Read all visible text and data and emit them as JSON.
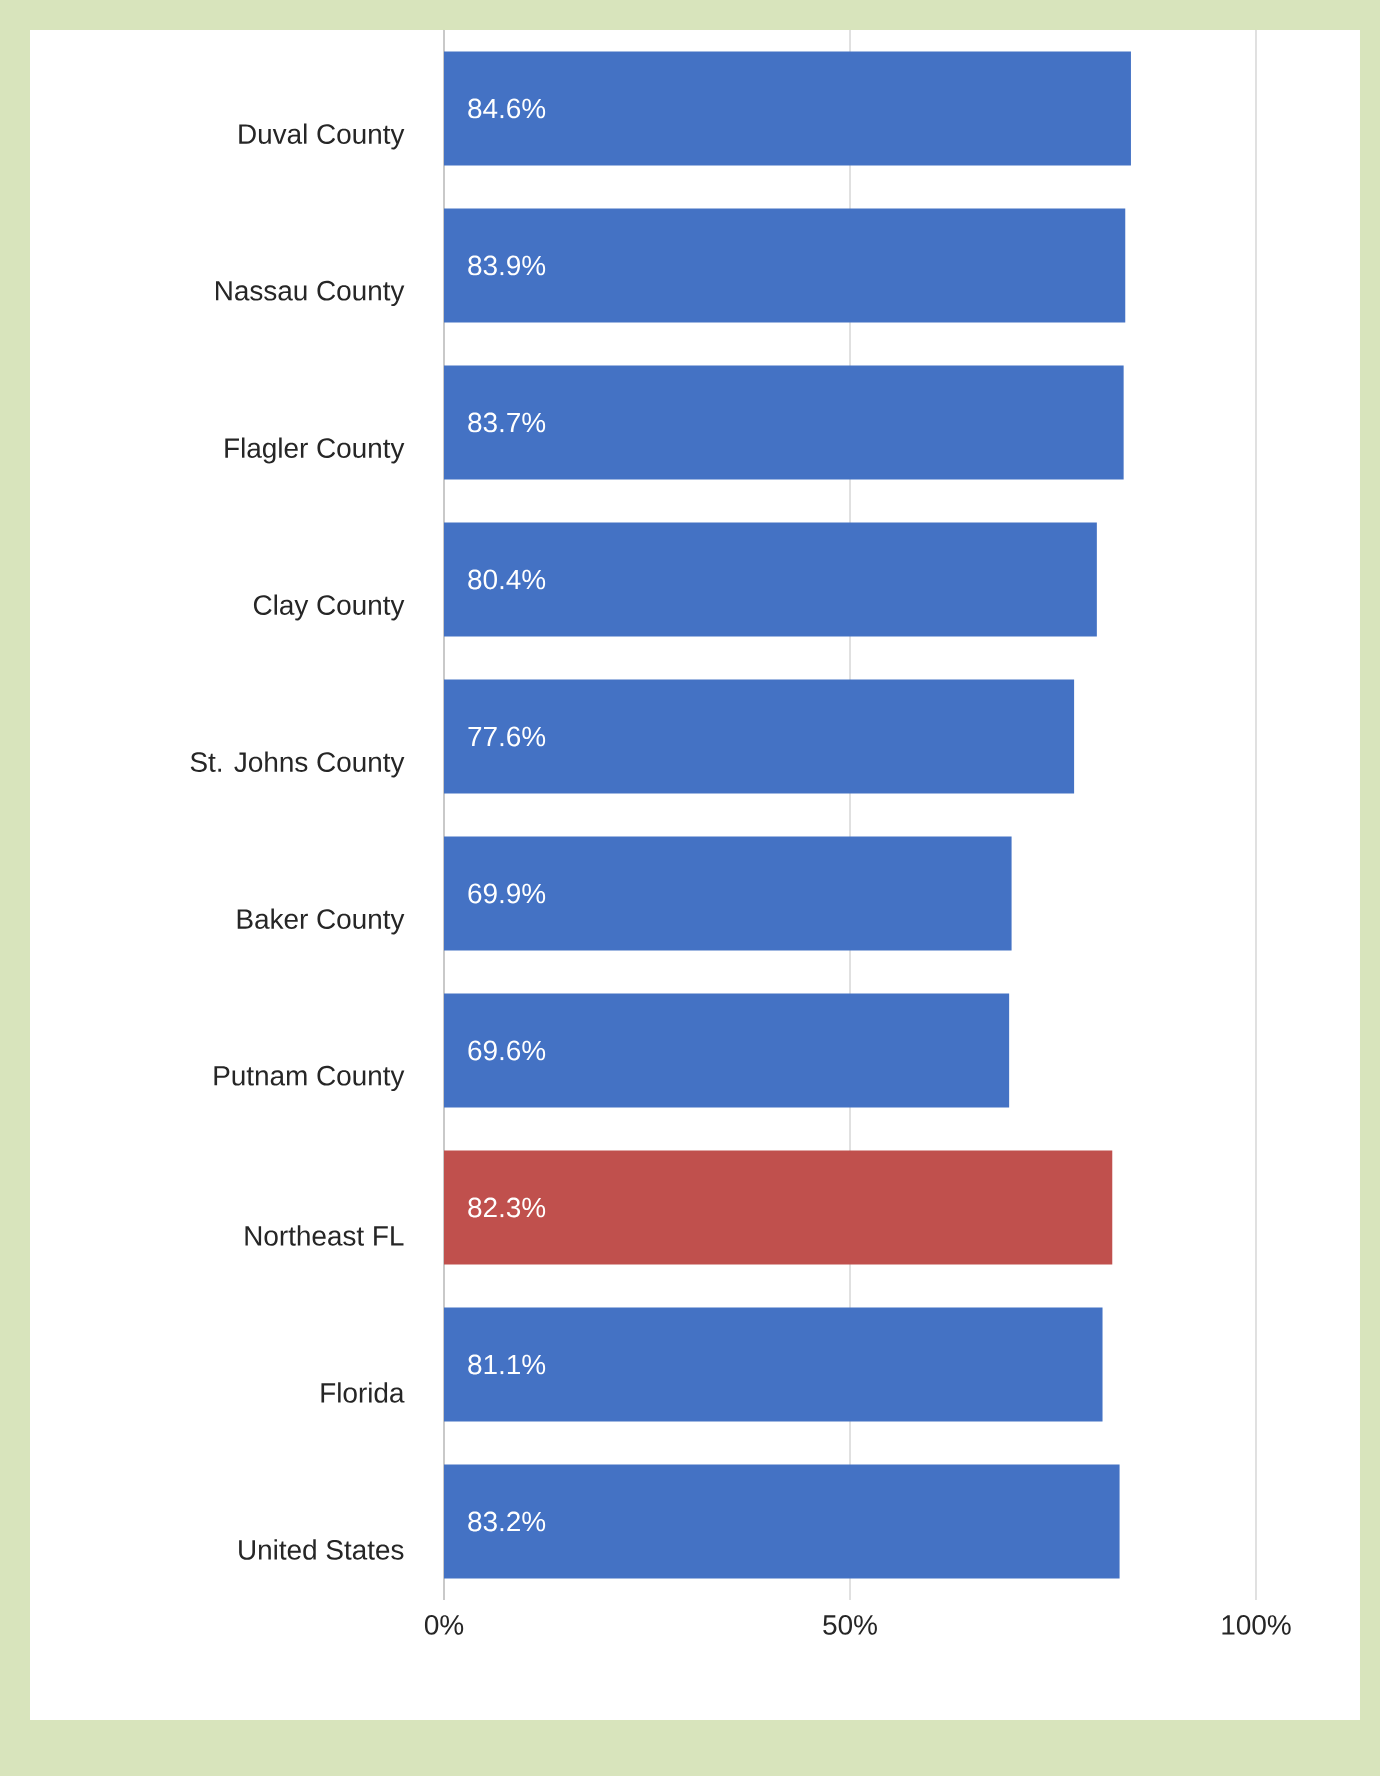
{
  "chart_data": {
    "type": "bar",
    "orientation": "horizontal",
    "categories": [
      "Duval County",
      "Nassau County",
      "Flagler County",
      "Clay County",
      "St. Johns County",
      "Baker County",
      "Putnam County",
      "Northeast FL",
      "Florida",
      "United States"
    ],
    "values": [
      84.6,
      83.9,
      83.7,
      80.4,
      77.6,
      69.9,
      69.6,
      82.3,
      81.1,
      83.2
    ],
    "colors": [
      "#4472c4",
      "#4472c4",
      "#4472c4",
      "#4472c4",
      "#4472c4",
      "#4472c4",
      "#4472c4",
      "#c0504d",
      "#4472c4",
      "#4472c4"
    ],
    "value_labels": [
      "84.6%",
      "83.9%",
      "83.7%",
      "80.4%",
      "77.6%",
      "69.9%",
      "69.6%",
      "82.3%",
      "81.1%",
      "83.2%"
    ],
    "xlim": [
      0,
      100
    ],
    "xticks": [
      {
        "value": 0,
        "label": "0%"
      },
      {
        "value": 50,
        "label": "50%"
      },
      {
        "value": 100,
        "label": "100%"
      }
    ],
    "grid": "x"
  }
}
